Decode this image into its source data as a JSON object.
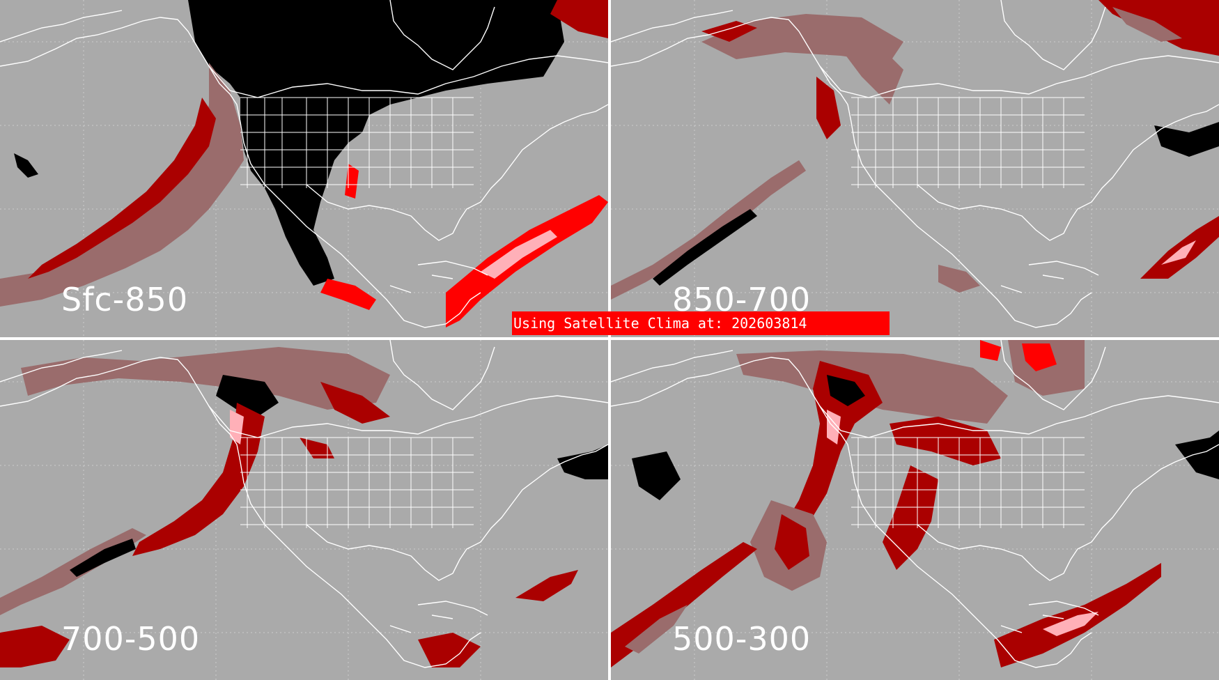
{
  "panels": [
    {
      "label": "Sfc-850"
    },
    {
      "label": "850-700"
    },
    {
      "label": "700-500"
    },
    {
      "label": "500-300"
    }
  ],
  "banner": {
    "text": "Using Satellite Clima at: 202603814"
  },
  "colors": {
    "background": "#aaaaaa",
    "coast": "#ffffff",
    "black_mask": "#000000",
    "dark_red": "#aa0000",
    "red": "#ff0000",
    "muted_red": "#9a6c6c",
    "pink": "#ffb0b8",
    "banner": "#ff0000"
  }
}
